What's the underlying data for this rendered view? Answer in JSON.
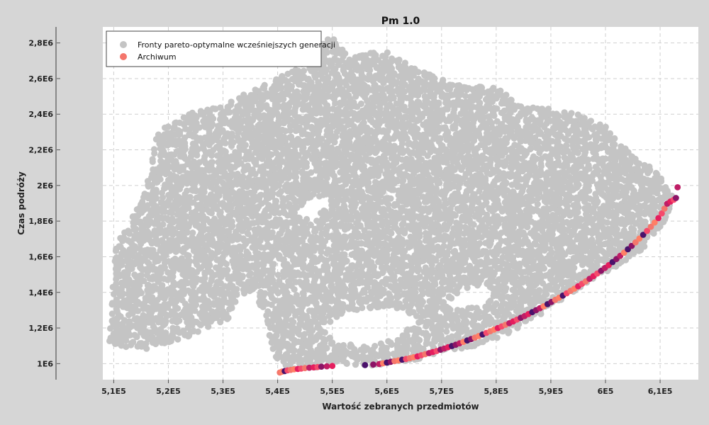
{
  "chart_data": {
    "type": "scatter",
    "title": "Pm 1.0",
    "xlabel": "Wartość zebranych przedmiotów",
    "ylabel": "Czas podróży",
    "xlim": [
      508000,
      617000
    ],
    "ylim": [
      910000,
      2890000
    ],
    "x_ticks": [
      {
        "value": 510000,
        "label": "5,1E5"
      },
      {
        "value": 520000,
        "label": "5,2E5"
      },
      {
        "value": 530000,
        "label": "5,3E5"
      },
      {
        "value": 540000,
        "label": "5,4E5"
      },
      {
        "value": 550000,
        "label": "5,5E5"
      },
      {
        "value": 560000,
        "label": "5,6E5"
      },
      {
        "value": 570000,
        "label": "5,7E5"
      },
      {
        "value": 580000,
        "label": "5,8E5"
      },
      {
        "value": 590000,
        "label": "5,9E5"
      },
      {
        "value": 600000,
        "label": "6E5"
      },
      {
        "value": 610000,
        "label": "6,1E5"
      }
    ],
    "y_ticks": [
      {
        "value": 1000000,
        "label": "1E6"
      },
      {
        "value": 1200000,
        "label": "1,2E6"
      },
      {
        "value": 1400000,
        "label": "1,4E6"
      },
      {
        "value": 1600000,
        "label": "1,6E6"
      },
      {
        "value": 1800000,
        "label": "1,8E6"
      },
      {
        "value": 2000000,
        "label": "2E6"
      },
      {
        "value": 2200000,
        "label": "2,2E6"
      },
      {
        "value": 2400000,
        "label": "2,4E6"
      },
      {
        "value": 2600000,
        "label": "2,6E6"
      },
      {
        "value": 2800000,
        "label": "2,8E6"
      }
    ],
    "grid": true,
    "legend_position": "top-left",
    "series": [
      {
        "name": "Fronty pareto-optymalne wcześniejszych generacji",
        "color": "#c4c4c4",
        "region": {
          "outline": [
            [
              509000,
              1120000
            ],
            [
              510500,
              1700000
            ],
            [
              513000,
              1800000
            ],
            [
              516000,
              2000000
            ],
            [
              518000,
              2300000
            ],
            [
              523000,
              2400000
            ],
            [
              530000,
              2450000
            ],
            [
              536000,
              2550000
            ],
            [
              540000,
              2600000
            ],
            [
              545000,
              2700000
            ],
            [
              550000,
              2850000
            ],
            [
              553000,
              2720000
            ],
            [
              557000,
              2760000
            ],
            [
              560000,
              2750000
            ],
            [
              565000,
              2660000
            ],
            [
              570000,
              2600000
            ],
            [
              575000,
              2560000
            ],
            [
              580000,
              2550000
            ],
            [
              585000,
              2450000
            ],
            [
              590000,
              2430000
            ],
            [
              595000,
              2400000
            ],
            [
              600000,
              2340000
            ],
            [
              605000,
              2160000
            ],
            [
              609000,
              2090000
            ],
            [
              611500,
              2000000
            ],
            [
              612500,
              1950000
            ],
            [
              611000,
              1800000
            ],
            [
              607000,
              1650000
            ],
            [
              603000,
              1560000
            ],
            [
              598000,
              1480000
            ],
            [
              593000,
              1380000
            ],
            [
              588000,
              1270000
            ],
            [
              583000,
              1180000
            ],
            [
              578000,
              1110000
            ],
            [
              573000,
              1080000
            ],
            [
              568000,
              1040000
            ],
            [
              563000,
              1010000
            ],
            [
              558000,
              990000
            ],
            [
              553000,
              990000
            ],
            [
              550000,
              1010000
            ],
            [
              546000,
              960000
            ],
            [
              541000,
              960000
            ],
            [
              539000,
              1050000
            ],
            [
              538000,
              1250000
            ],
            [
              536000,
              1380000
            ],
            [
              533000,
              1400000
            ],
            [
              531000,
              1250000
            ],
            [
              527000,
              1200000
            ],
            [
              522000,
              1130000
            ],
            [
              516000,
              1080000
            ],
            [
              511000,
              1100000
            ]
          ],
          "gaps": [
            [
              [
                548000,
                1200000
              ],
              [
                552000,
                1280000
              ],
              [
                560000,
                1320000
              ],
              [
                566000,
                1260000
              ],
              [
                562000,
                1140000
              ],
              [
                556000,
                1100000
              ],
              [
                550000,
                1130000
              ]
            ],
            [
              [
                571000,
                1350000
              ],
              [
                576000,
                1440000
              ],
              [
                580000,
                1420000
              ],
              [
                578000,
                1330000
              ],
              [
                573000,
                1300000
              ]
            ],
            [
              [
                543000,
                1850000
              ],
              [
                547000,
                1950000
              ],
              [
                550000,
                1900000
              ],
              [
                546000,
                1800000
              ]
            ]
          ]
        }
      },
      {
        "name": "Archiwum",
        "color": "#f4766c",
        "palette": [
          "#f4766c",
          "#f54a6c",
          "#e51e5e",
          "#bf1e66",
          "#8c1466",
          "#4a126b",
          "#ff7f66"
        ],
        "points": [
          [
            540400,
            950000
          ],
          [
            540800,
            955000
          ],
          [
            541300,
            958000
          ],
          [
            541800,
            962000
          ],
          [
            542400,
            965000
          ],
          [
            543000,
            968000
          ],
          [
            543700,
            970000
          ],
          [
            544300,
            972000
          ],
          [
            545000,
            975000
          ],
          [
            545800,
            977000
          ],
          [
            546600,
            979000
          ],
          [
            547300,
            981000
          ],
          [
            548000,
            983000
          ],
          [
            549000,
            985000
          ],
          [
            550000,
            987000
          ],
          [
            556000,
            992000
          ],
          [
            557500,
            995000
          ],
          [
            558600,
            998000
          ],
          [
            559300,
            1002000
          ],
          [
            560000,
            1006000
          ],
          [
            560700,
            1010000
          ],
          [
            561400,
            1014000
          ],
          [
            562100,
            1018000
          ],
          [
            562800,
            1022000
          ],
          [
            563500,
            1026000
          ],
          [
            564200,
            1031000
          ],
          [
            564900,
            1036000
          ],
          [
            565600,
            1041000
          ],
          [
            566300,
            1047000
          ],
          [
            567000,
            1053000
          ],
          [
            567700,
            1059000
          ],
          [
            568400,
            1065000
          ],
          [
            569100,
            1071000
          ],
          [
            569800,
            1078000
          ],
          [
            570500,
            1085000
          ],
          [
            571200,
            1092000
          ],
          [
            571900,
            1099000
          ],
          [
            572600,
            1106000
          ],
          [
            573300,
            1114000
          ],
          [
            574000,
            1122000
          ],
          [
            574700,
            1130000
          ],
          [
            575400,
            1138000
          ],
          [
            576100,
            1146000
          ],
          [
            576800,
            1155000
          ],
          [
            577500,
            1164000
          ],
          [
            578200,
            1173000
          ],
          [
            578900,
            1182000
          ],
          [
            579600,
            1191000
          ],
          [
            580300,
            1200000
          ],
          [
            581000,
            1209000
          ],
          [
            581700,
            1218000
          ],
          [
            582400,
            1227000
          ],
          [
            583100,
            1237000
          ],
          [
            583800,
            1247000
          ],
          [
            584500,
            1257000
          ],
          [
            585200,
            1267000
          ],
          [
            585900,
            1278000
          ],
          [
            586600,
            1289000
          ],
          [
            587300,
            1300000
          ],
          [
            588000,
            1311000
          ],
          [
            588700,
            1322000
          ],
          [
            589400,
            1334000
          ],
          [
            590100,
            1346000
          ],
          [
            590800,
            1358000
          ],
          [
            591500,
            1370000
          ],
          [
            592200,
            1382000
          ],
          [
            592900,
            1395000
          ],
          [
            593600,
            1408000
          ],
          [
            594300,
            1421000
          ],
          [
            595000,
            1434000
          ],
          [
            595700,
            1448000
          ],
          [
            596400,
            1462000
          ],
          [
            597100,
            1476000
          ],
          [
            597800,
            1491000
          ],
          [
            598500,
            1506000
          ],
          [
            599200,
            1521000
          ],
          [
            599900,
            1537000
          ],
          [
            600600,
            1553000
          ],
          [
            601300,
            1570000
          ],
          [
            602000,
            1587000
          ],
          [
            602700,
            1605000
          ],
          [
            603400,
            1623000
          ],
          [
            604100,
            1642000
          ],
          [
            604800,
            1661000
          ],
          [
            605500,
            1681000
          ],
          [
            606200,
            1702000
          ],
          [
            606900,
            1723000
          ],
          [
            607600,
            1745000
          ],
          [
            608300,
            1768000
          ],
          [
            609000,
            1792000
          ],
          [
            609700,
            1817000
          ],
          [
            610300,
            1843000
          ],
          [
            610800,
            1870000
          ],
          [
            611300,
            1898000
          ],
          [
            611900,
            1910000
          ],
          [
            612500,
            1920000
          ],
          [
            612900,
            1930000
          ],
          [
            613200,
            1990000
          ]
        ]
      }
    ]
  }
}
